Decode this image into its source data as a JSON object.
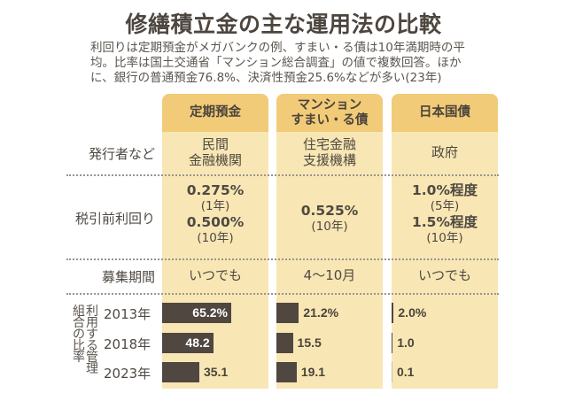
{
  "title": "修繕積立金の主な運用法の比較",
  "note": "利回りは定期預金がメガバンクの例、すまい・る債は10年満期時の平均。比率は国土交通省「マンション総合調査」の値で複数回答。ほかに、銀行の普通預金76.8%、決済性預金25.6%などが多い(23年)",
  "columns": [
    {
      "header": "定期預金",
      "issuer": "民間\n金融機関",
      "yield_lines": [
        {
          "value": "0.275%",
          "term": "(1年)"
        },
        {
          "value": "0.500%",
          "term": "(10年)"
        }
      ],
      "period": "いつでも"
    },
    {
      "header": "マンション\nすまい・る債",
      "issuer": "住宅金融\n支援機構",
      "yield_lines": [
        {
          "value": "0.525%",
          "term": "(10年)"
        }
      ],
      "period": "4〜10月"
    },
    {
      "header": "日本国債",
      "issuer": "政府",
      "yield_lines": [
        {
          "value": "1.0%程度",
          "term": "(5年)"
        },
        {
          "value": "1.5%程度",
          "term": "(10年)"
        }
      ],
      "period": "いつでも"
    }
  ],
  "row_labels": {
    "issuer": "発行者など",
    "yield": "税引前利回り",
    "period": "募集期間",
    "usage_a": "組合の比率",
    "usage_b": "利用する管理"
  },
  "colors": {
    "header": "#f1cb78",
    "body": "#f8e7b4",
    "bar": "#4f4740"
  },
  "chart_data": {
    "type": "bar",
    "title": "利用する管理組合の比率",
    "categories": [
      "2013年",
      "2018年",
      "2023年"
    ],
    "unit": "%",
    "series": [
      {
        "name": "定期預金",
        "values": [
          65.2,
          48.2,
          35.1
        ],
        "labels": [
          "65.2%",
          "48.2",
          "35.1"
        ]
      },
      {
        "name": "マンションすまい・る債",
        "values": [
          21.2,
          15.5,
          19.1
        ],
        "labels": [
          "21.2%",
          "15.5",
          "19.1"
        ]
      },
      {
        "name": "日本国債",
        "values": [
          2.0,
          1.0,
          0.1
        ],
        "labels": [
          "2.0%",
          "1.0",
          "0.1"
        ]
      }
    ]
  }
}
